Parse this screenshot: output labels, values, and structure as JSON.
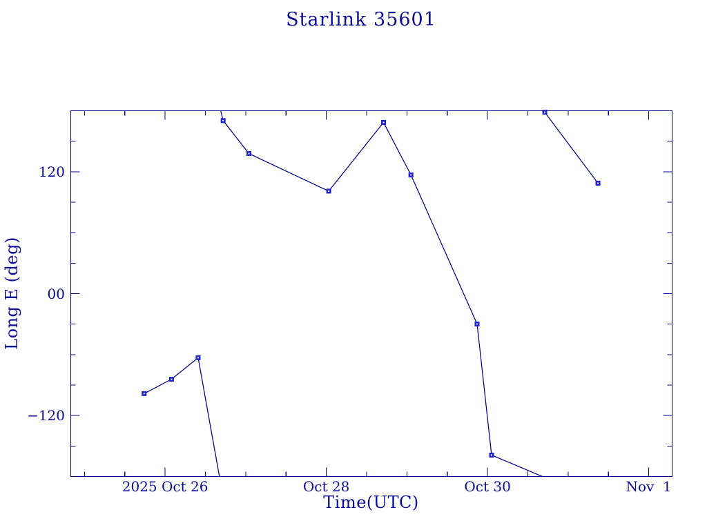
{
  "chart_data": {
    "type": "line",
    "title": "Starlink 35601",
    "xlabel": "Time(UTC)",
    "ylabel": "Long E (deg)",
    "x_axis": {
      "unit": "day of 2025 October (32 = Nov 1)",
      "range_days": [
        24.83,
        32.29
      ],
      "major_ticks": [
        {
          "day": 26,
          "label": "2025 Oct 26"
        },
        {
          "day": 28,
          "label": "Oct 28"
        },
        {
          "day": 30,
          "label": "Oct 30"
        },
        {
          "day": 32,
          "label": "Nov  1"
        }
      ],
      "minor_ticks_days": [
        25,
        25.5,
        26.5,
        27,
        27.5,
        28.5,
        29,
        29.5,
        30.5,
        31,
        31.5
      ]
    },
    "y_axis": {
      "unit": "degrees east longitude",
      "range_deg": [
        -180,
        180
      ],
      "major_ticks": [
        {
          "deg": 120,
          "label": "120"
        },
        {
          "deg": 0,
          "label": "00"
        },
        {
          "deg": -120,
          "label": "−120"
        }
      ],
      "minor_ticks_deg": [
        150,
        90,
        60,
        30,
        -30,
        -60,
        -90,
        -150
      ]
    },
    "grid": false,
    "legend": null,
    "points": [
      {
        "day": 25.74,
        "deg": -98.4
      },
      {
        "day": 26.08,
        "deg": -84.2
      },
      {
        "day": 26.41,
        "deg": -63.1
      },
      {
        "day": 26.72,
        "deg": 170.3
      },
      {
        "day": 27.04,
        "deg": 137.9
      },
      {
        "day": 28.03,
        "deg": 100.9
      },
      {
        "day": 28.71,
        "deg": 168.5
      },
      {
        "day": 29.05,
        "deg": 116.8
      },
      {
        "day": 29.87,
        "deg": -29.9
      },
      {
        "day": 30.05,
        "deg": -158.9
      },
      {
        "day": 30.71,
        "deg": 178.6
      },
      {
        "day": 31.37,
        "deg": 108.7
      }
    ],
    "segments": [
      [
        [
          25.74,
          -98.4
        ],
        [
          26.08,
          -84.2
        ],
        [
          26.41,
          -63.1
        ],
        [
          26.674,
          -180
        ]
      ],
      [
        [
          26.69,
          180
        ],
        [
          26.72,
          170.3
        ],
        [
          27.04,
          137.9
        ],
        [
          28.03,
          100.9
        ],
        [
          28.71,
          168.5
        ],
        [
          29.05,
          116.8
        ],
        [
          29.87,
          -29.9
        ],
        [
          30.05,
          -158.9
        ],
        [
          30.68,
          -180
        ]
      ],
      [
        [
          30.71,
          178.6
        ],
        [
          31.37,
          108.7
        ]
      ]
    ],
    "colors": {
      "frame": "#00008b",
      "line": "#00008b",
      "marker": "#2222cc",
      "text": "#0d0d9c",
      "background": "#ffffff"
    }
  }
}
